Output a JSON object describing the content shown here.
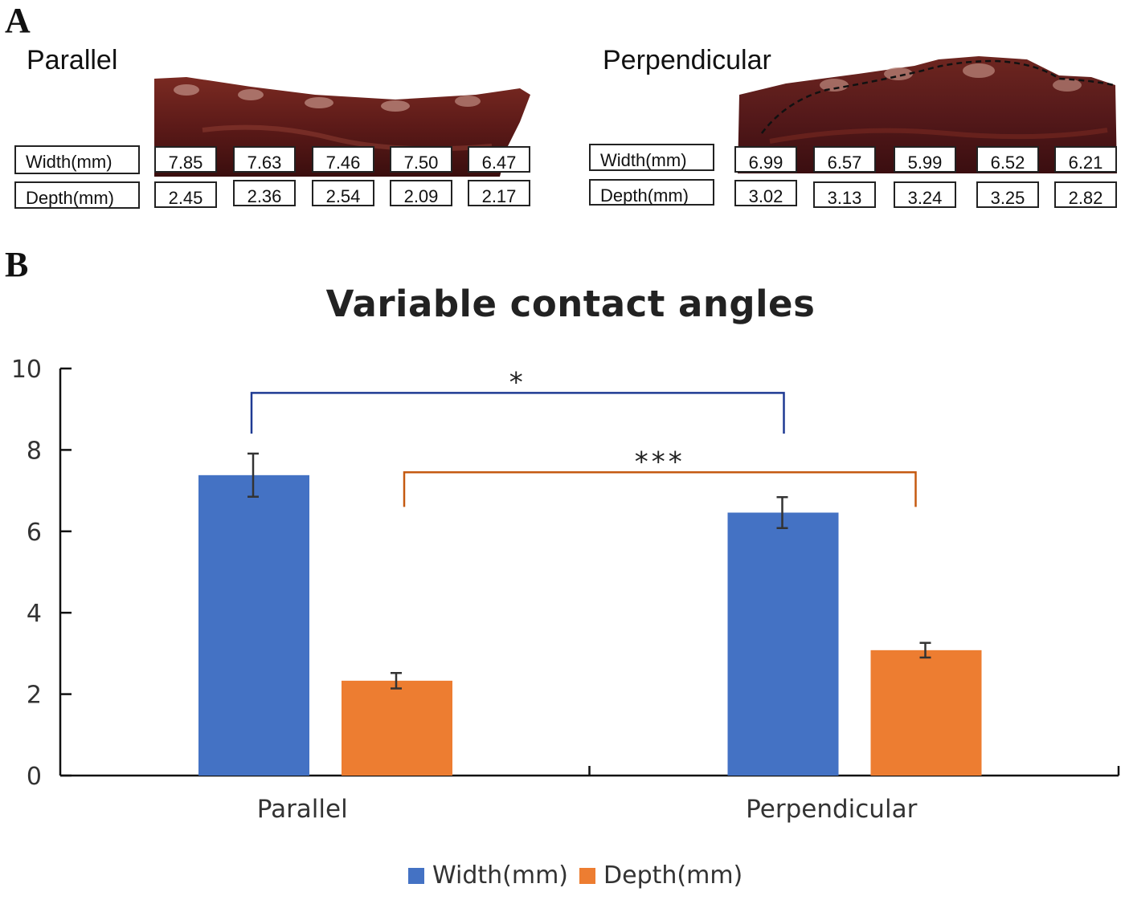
{
  "panel_a": {
    "letter": "A",
    "groups": [
      {
        "title": "Parallel",
        "width_label": "Width(mm)",
        "depth_label": "Depth(mm)",
        "width_values": [
          "7.85",
          "7.63",
          "7.46",
          "7.50",
          "6.47"
        ],
        "depth_values": [
          "2.45",
          "2.36",
          "2.54",
          "2.09",
          "2.17"
        ]
      },
      {
        "title": "Perpendicular",
        "width_label": "Width(mm)",
        "depth_label": "Depth(mm)",
        "width_values": [
          "6.99",
          "6.57",
          "5.99",
          "6.52",
          "6.21"
        ],
        "depth_values": [
          "3.02",
          "3.13",
          "3.24",
          "3.25",
          "2.82"
        ]
      }
    ],
    "colors": {
      "tissue_dark": "#4a1414",
      "tissue_mid": "#7a2a22",
      "tissue_light": "#b8847a"
    }
  },
  "panel_b": {
    "letter": "B"
  },
  "chart_data": {
    "type": "bar",
    "title": "Variable contact angles",
    "xlabel": "",
    "ylabel": "",
    "categories": [
      "Parallel",
      "Perpendicular"
    ],
    "ylim": [
      0,
      10
    ],
    "yticks": [
      0,
      2,
      4,
      6,
      8,
      10
    ],
    "series": [
      {
        "name": "Width(mm)",
        "values": [
          7.38,
          6.46
        ],
        "errors": [
          0.53,
          0.38
        ],
        "color": "#4472c4"
      },
      {
        "name": "Depth(mm)",
        "values": [
          2.33,
          3.08
        ],
        "errors": [
          0.19,
          0.18
        ],
        "color": "#ed7d31"
      }
    ],
    "significance": [
      {
        "label": "*",
        "series": "Width(mm)",
        "color": "#1f3a93"
      },
      {
        "label": "***",
        "series": "Depth(mm)",
        "color": "#c55a11"
      }
    ],
    "legend": "bottom",
    "grid": false
  }
}
